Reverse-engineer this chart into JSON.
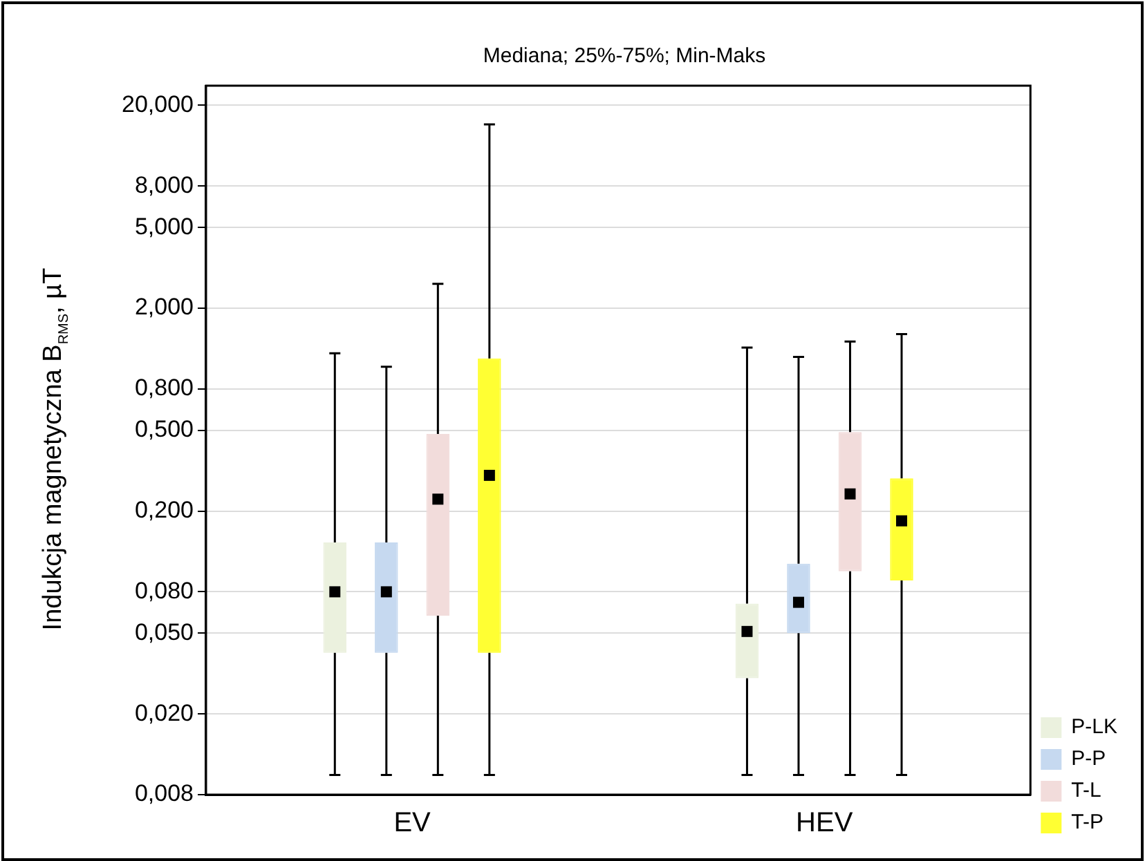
{
  "chart_data": {
    "type": "box",
    "title": "Mediana; 25%-75%; Min-Maks",
    "ylabel": "Indukcja magnetyczna B$_{RMS}$, µT",
    "categories": [
      "EV",
      "HEV"
    ],
    "series": [
      {
        "name": "P-LK",
        "color": "#ebf1de",
        "boxes": [
          {
            "low": 0.01,
            "q1": 0.04,
            "median": 0.08,
            "q3": 0.14,
            "high": 1.2
          },
          {
            "low": 0.01,
            "q1": 0.03,
            "median": 0.051,
            "q3": 0.07,
            "high": 1.28
          }
        ]
      },
      {
        "name": "P-P",
        "color": "#c6d9f0",
        "boxes": [
          {
            "low": 0.01,
            "q1": 0.04,
            "median": 0.08,
            "q3": 0.14,
            "high": 1.03
          },
          {
            "low": 0.01,
            "q1": 0.05,
            "median": 0.071,
            "q3": 0.11,
            "high": 1.15
          }
        ]
      },
      {
        "name": "T-L",
        "color": "#f2dcdb",
        "boxes": [
          {
            "low": 0.01,
            "q1": 0.061,
            "median": 0.229,
            "q3": 0.48,
            "high": 2.64
          },
          {
            "low": 0.01,
            "q1": 0.101,
            "median": 0.243,
            "q3": 0.49,
            "high": 1.37
          }
        ]
      },
      {
        "name": "T-P",
        "color": "#ffff33",
        "boxes": [
          {
            "low": 0.01,
            "q1": 0.04,
            "median": 0.3,
            "q3": 1.13,
            "high": 16.1
          },
          {
            "low": 0.01,
            "q1": 0.091,
            "median": 0.179,
            "q3": 0.29,
            "high": 1.49
          }
        ]
      }
    ],
    "log": "y",
    "ylim": [
      0.008,
      25
    ],
    "yticks": [
      {
        "value": 0.008,
        "label": "0,008"
      },
      {
        "value": 0.02,
        "label": "0,020"
      },
      {
        "value": 0.05,
        "label": "0,050"
      },
      {
        "value": 0.08,
        "label": "0,080"
      },
      {
        "value": 0.2,
        "label": "0,200"
      },
      {
        "value": 0.5,
        "label": "0,500"
      },
      {
        "value": 0.8,
        "label": "0,800"
      },
      {
        "value": 2,
        "label": "2,000"
      },
      {
        "value": 5,
        "label": "5,000"
      },
      {
        "value": 8,
        "label": "8,000"
      },
      {
        "value": 20,
        "label": "20,000"
      }
    ],
    "grid": "y",
    "legend": "bottom right",
    "marker": "square"
  }
}
